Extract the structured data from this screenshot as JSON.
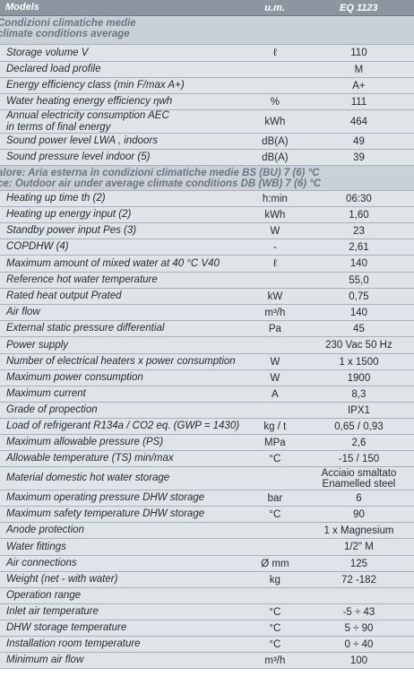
{
  "header": {
    "label": "Models",
    "unit": "u.m.",
    "model": "EQ 1123"
  },
  "rows": [
    {
      "type": "section",
      "lines": [
        "Condizioni climatiche medie",
        "climate conditions average"
      ]
    },
    {
      "label": "Storage volume V",
      "unit": "ℓ",
      "value": "110"
    },
    {
      "label": "Declared load profile",
      "unit": "",
      "value": "M"
    },
    {
      "label": "Energy efficiency class (min F/max A+)",
      "unit": "",
      "value": "A+"
    },
    {
      "label": "Water heating energy efficiency ηwh",
      "unit": "%",
      "value": "111"
    },
    {
      "label": "Annual electricity consumption AEC\nin terms of final energy",
      "unit": "kWh",
      "value": "464"
    },
    {
      "label": "Sound power level LWA , indoors",
      "unit": "dB(A)",
      "value": "49"
    },
    {
      "label": "Sound pressure level indoor (5)",
      "unit": "dB(A)",
      "value": "39"
    },
    {
      "type": "section",
      "lines": [
        "alore: Aria esterna in condizioni climatiche medie BS (BU) 7 (6) °C",
        "ce: Outdoor air under average climate conditions DB (WB) 7 (6) °C"
      ]
    },
    {
      "label": "Heating up time th (2)",
      "unit": "h:min",
      "value": "06:30"
    },
    {
      "label": "Heating up energy input (2)",
      "unit": "kWh",
      "value": "1,60"
    },
    {
      "label": "Standby power input Pes (3)",
      "unit": "W",
      "value": "23"
    },
    {
      "label": "COPDHW (4)",
      "unit": "-",
      "value": "2,61"
    },
    {
      "label": "Maximum amount of mixed water at 40 °C V40",
      "unit": "ℓ",
      "value": "140"
    },
    {
      "label": "Reference hot water temperature",
      "unit": "",
      "value": "55,0"
    },
    {
      "label": "Rated heat output Prated",
      "unit": "kW",
      "value": "0,75"
    },
    {
      "label": "Air flow",
      "unit": "m³/h",
      "value": "140"
    },
    {
      "label": "External static pressure differential",
      "unit": "Pa",
      "value": "45"
    },
    {
      "label": "Power supply",
      "unit": "",
      "value": "230 Vac 50 Hz"
    },
    {
      "label": "Number of electrical heaters x power consumption",
      "unit": "W",
      "value": "1 x 1500"
    },
    {
      "label": "Maximum power consumption",
      "unit": "W",
      "value": "1900"
    },
    {
      "label": "Maximum current",
      "unit": "A",
      "value": "8,3"
    },
    {
      "label": "Grade of propection",
      "unit": "",
      "value": "IPX1"
    },
    {
      "label": "Load of refrigerant R134a / CO2 eq. (GWP = 1430)",
      "unit": "kg / t",
      "value": "0,65 / 0,93"
    },
    {
      "label": "Maximum allowable pressure (PS)",
      "unit": "MPa",
      "value": "2,6"
    },
    {
      "label": "Allowable temperature (TS) min/max",
      "unit": "°C",
      "value": "-15 / 150"
    },
    {
      "label": "Material domestic hot water storage",
      "unit": "",
      "value": "Acciaio smaltato\nEnamelled steel"
    },
    {
      "label": "Maximum operating pressure DHW storage",
      "unit": "bar",
      "value": "6"
    },
    {
      "label": "Maximum safety temperature DHW storage",
      "unit": "°C",
      "value": "90"
    },
    {
      "label": "Anode protection",
      "unit": "",
      "value": "1 x Magnesium"
    },
    {
      "label": "Water fittings",
      "unit": "",
      "value": "1/2\" M"
    },
    {
      "label": "Air connections",
      "unit": "Ø mm",
      "value": "125"
    },
    {
      "label": "Weight (net - with water)",
      "unit": "kg",
      "value": "72 -182"
    },
    {
      "label": "Operation range",
      "unit": "",
      "value": ""
    },
    {
      "label": "Inlet air temperature",
      "unit": "°C",
      "value": "-5 ÷ 43"
    },
    {
      "label": "DHW storage temperature",
      "unit": "°C",
      "value": "5 ÷ 90"
    },
    {
      "label": "Installation room temperature",
      "unit": "°C",
      "value": "0 ÷ 40"
    },
    {
      "label": "Minimum air flow",
      "unit": "m³/h",
      "value": "100"
    }
  ]
}
